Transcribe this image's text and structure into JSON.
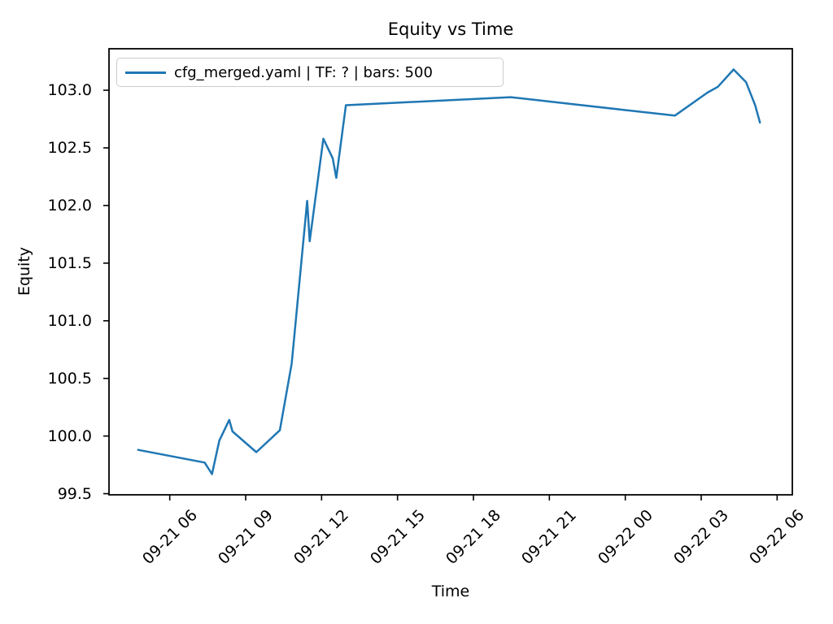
{
  "chart_data": {
    "type": "line",
    "title": "Equity vs Time",
    "xlabel": "Time",
    "ylabel": "Equity",
    "grid": false,
    "legend_position": "upper left",
    "line_color": "#1f77b4",
    "axis_color": "#000000",
    "legend_border_color": "#cccccc",
    "x_unit": "hours after 09-21 00:00",
    "xlim_hours": [
      3.6,
      30.6
    ],
    "ylim": [
      99.49,
      103.36
    ],
    "x_ticks": [
      {
        "hour": 6,
        "label": "09-21 06"
      },
      {
        "hour": 9,
        "label": "09-21 09"
      },
      {
        "hour": 12,
        "label": "09-21 12"
      },
      {
        "hour": 15,
        "label": "09-21 15"
      },
      {
        "hour": 18,
        "label": "09-21 18"
      },
      {
        "hour": 21,
        "label": "09-21 21"
      },
      {
        "hour": 24,
        "label": "09-22 00"
      },
      {
        "hour": 27,
        "label": "09-22 03"
      },
      {
        "hour": 30,
        "label": "09-22 06"
      }
    ],
    "y_ticks": [
      {
        "value": 99.5,
        "label": "99.5"
      },
      {
        "value": 100.0,
        "label": "100.0"
      },
      {
        "value": 100.5,
        "label": "100.5"
      },
      {
        "value": 101.0,
        "label": "101.0"
      },
      {
        "value": 101.5,
        "label": "101.5"
      },
      {
        "value": 102.0,
        "label": "102.0"
      },
      {
        "value": 102.5,
        "label": "102.5"
      },
      {
        "value": 103.0,
        "label": "103.0"
      }
    ],
    "series": [
      {
        "name": "cfg_merged.yaml | TF: ? | bars: 500",
        "points": [
          {
            "time": "09-21 04:45",
            "hour": 4.75,
            "equity": 99.88
          },
          {
            "time": "09-21 07:23",
            "hour": 7.38,
            "equity": 99.77
          },
          {
            "time": "09-21 07:40",
            "hour": 7.67,
            "equity": 99.67
          },
          {
            "time": "09-21 07:58",
            "hour": 7.96,
            "equity": 99.96
          },
          {
            "time": "09-21 08:21",
            "hour": 8.35,
            "equity": 100.14
          },
          {
            "time": "09-21 08:29",
            "hour": 8.48,
            "equity": 100.04
          },
          {
            "time": "09-21 09:25",
            "hour": 9.42,
            "equity": 99.86
          },
          {
            "time": "09-21 10:21",
            "hour": 10.35,
            "equity": 100.05
          },
          {
            "time": "09-21 10:49",
            "hour": 10.82,
            "equity": 100.63
          },
          {
            "time": "09-21 11:26",
            "hour": 11.43,
            "equity": 102.04
          },
          {
            "time": "09-21 11:32",
            "hour": 11.53,
            "equity": 101.69
          },
          {
            "time": "09-21 12:04",
            "hour": 12.07,
            "equity": 102.58
          },
          {
            "time": "09-21 12:26",
            "hour": 12.44,
            "equity": 102.41
          },
          {
            "time": "09-21 12:35",
            "hour": 12.58,
            "equity": 102.24
          },
          {
            "time": "09-21 12:58",
            "hour": 12.96,
            "equity": 102.87
          },
          {
            "time": "09-21 19:28",
            "hour": 19.47,
            "equity": 102.94
          },
          {
            "time": "09-22 01:58",
            "hour": 25.96,
            "equity": 102.78
          },
          {
            "time": "09-22 03:15",
            "hour": 27.25,
            "equity": 102.98
          },
          {
            "time": "09-22 03:40",
            "hour": 27.66,
            "equity": 103.03
          },
          {
            "time": "09-22 04:17",
            "hour": 28.28,
            "equity": 103.18
          },
          {
            "time": "09-22 04:46",
            "hour": 28.77,
            "equity": 103.07
          },
          {
            "time": "09-22 05:08",
            "hour": 29.13,
            "equity": 102.87
          },
          {
            "time": "09-22 05:19",
            "hour": 29.32,
            "equity": 102.72
          }
        ]
      }
    ]
  }
}
